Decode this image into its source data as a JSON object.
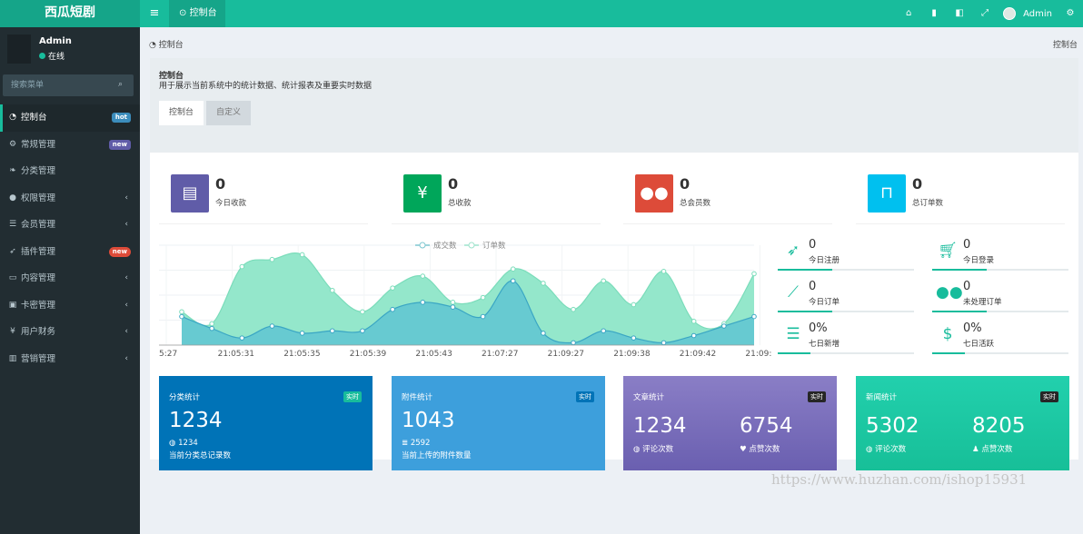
{
  "app": {
    "title": "西瓜短剧"
  },
  "topbar": {
    "tab_label": "控制台",
    "user_name": "Admin"
  },
  "sidebar": {
    "user_name": "Admin",
    "status": "在线",
    "search_placeholder": "搜索菜单",
    "items": [
      {
        "label": "控制台",
        "icon": "dashboard-icon",
        "badge": "hot"
      },
      {
        "label": "常规管理",
        "icon": "cogs-icon",
        "badge": "new"
      },
      {
        "label": "分类管理",
        "icon": "leaf-icon"
      },
      {
        "label": "权限管理",
        "icon": "group-icon"
      },
      {
        "label": "会员管理",
        "icon": "list-icon"
      },
      {
        "label": "插件管理",
        "icon": "rocket-icon",
        "badge": "new"
      },
      {
        "label": "内容管理",
        "icon": "file-icon"
      },
      {
        "label": "卡密管理",
        "icon": "image-icon"
      },
      {
        "label": "用户财务",
        "icon": "yen-icon"
      },
      {
        "label": "营销管理",
        "icon": "bar-chart-icon"
      }
    ]
  },
  "breadcrumb": {
    "current": "控制台",
    "right": "控制台"
  },
  "panel": {
    "title": "控制台",
    "subtitle": "用于展示当前系统中的统计数据、统计报表及重要实时数据",
    "tabs": [
      "控制台",
      "自定义"
    ]
  },
  "stats": [
    {
      "value": "0",
      "label": "今日收款",
      "color": "#605ca8",
      "icon": "book-icon"
    },
    {
      "value": "0",
      "label": "总收款",
      "color": "#00a65a",
      "icon": "yen-icon"
    },
    {
      "value": "0",
      "label": "总会员数",
      "color": "#dd4b39",
      "icon": "users-icon"
    },
    {
      "value": "0",
      "label": "总订单数",
      "color": "#00c0ef",
      "icon": "shopping-bag-icon"
    }
  ],
  "mini_stats": [
    {
      "value": "0",
      "label": "今日注册",
      "icon": "rocket-icon"
    },
    {
      "value": "0",
      "label": "今日登录",
      "icon": "cart-icon"
    },
    {
      "value": "0",
      "label": "今日订单",
      "icon": "area-chart-icon"
    },
    {
      "value": "0",
      "label": "未处理订单",
      "icon": "users-icon"
    },
    {
      "value": "0%",
      "label": "七日新增",
      "icon": "list-alt-icon"
    },
    {
      "value": "0%",
      "label": "七日活跃",
      "icon": "dollar-icon"
    }
  ],
  "cards": [
    {
      "title": "分类统计",
      "tag": "实时",
      "big": "1234",
      "small": "1234",
      "desc": "当前分类总记录数",
      "color": "#0073b7"
    },
    {
      "title": "附件统计",
      "tag": "实时",
      "big": "1043",
      "small": "2592",
      "desc": "当前上传的附件数量",
      "color": "#3d9fdc"
    },
    {
      "title": "文章统计",
      "tag": "实时",
      "big1": "1234",
      "big2": "6754",
      "lbl1": "评论次数",
      "lbl2": "点赞次数",
      "color": "#7b6fbb"
    },
    {
      "title": "新闻统计",
      "tag": "实时",
      "big1": "5302",
      "big2": "8205",
      "lbl1": "评论次数",
      "lbl2": "点赞次数",
      "color": "#1fcca7"
    }
  ],
  "watermark": "https://www.huzhan.com/ishop15931",
  "chart_data": {
    "type": "area",
    "legend": [
      "成交数",
      "订单数"
    ],
    "x_ticks": [
      "5:27",
      "21:05:31",
      "21:05:35",
      "21:05:39",
      "21:05:43",
      "21:07:27",
      "21:09:27",
      "21:09:38",
      "21:09:42",
      "21:09:"
    ],
    "series": [
      {
        "name": "订单数",
        "values": [
          14,
          9,
          33,
          36,
          38,
          23,
          14,
          24,
          29,
          18,
          20,
          32,
          26,
          15,
          27,
          17,
          31,
          10,
          9,
          30
        ]
      },
      {
        "name": "成交数",
        "values": [
          12,
          7,
          3,
          8,
          5,
          6,
          6,
          15,
          18,
          16,
          12,
          27,
          5,
          1,
          6,
          3,
          1,
          4,
          8,
          12
        ]
      }
    ]
  }
}
